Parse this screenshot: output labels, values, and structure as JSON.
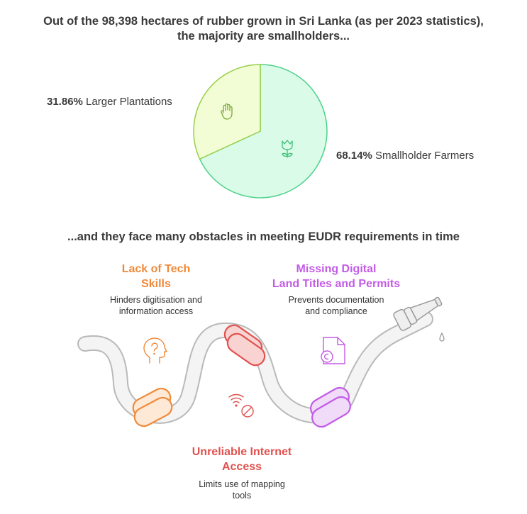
{
  "header": {
    "title_line1": "Out of the 98,398 hectares of rubber grown in Sri Lanka (as per 2023 statistics),",
    "title_line2": "the majority are smallholders..."
  },
  "chart_data": {
    "type": "pie",
    "slices": [
      {
        "label": "Smallholder Farmers",
        "percent_text": "68.14%",
        "value": 68.14,
        "color": "#d9fbe8",
        "stroke": "#4fd18b",
        "icon": "tulip-icon"
      },
      {
        "label": "Larger Plantations",
        "percent_text": "31.86%",
        "value": 31.86,
        "color": "#f2fdd6",
        "stroke": "#9bcf4a",
        "icon": "raised-hand-icon"
      }
    ]
  },
  "section2": {
    "title": "...and they face many obstacles in meeting EUDR requirements in time"
  },
  "obstacles": [
    {
      "title_line1": "Lack of Tech",
      "title_line2": "Skills",
      "desc_line1": "Hinders digitisation and",
      "desc_line2": "information access",
      "color": "#f08a3a",
      "icon": "head-question-icon"
    },
    {
      "title_line1": "Missing Digital",
      "title_line2": "Land Titles and  Permits",
      "desc_line1": "Prevents documentation",
      "desc_line2": "and compliance",
      "color": "#c45be6",
      "icon": "document-icon"
    },
    {
      "title_line1": "Unreliable Internet",
      "title_line2": "Access",
      "desc_line1": "Limits use of mapping",
      "desc_line2": "tools",
      "color": "#e0524f",
      "icon": "wifi-off-icon"
    }
  ]
}
